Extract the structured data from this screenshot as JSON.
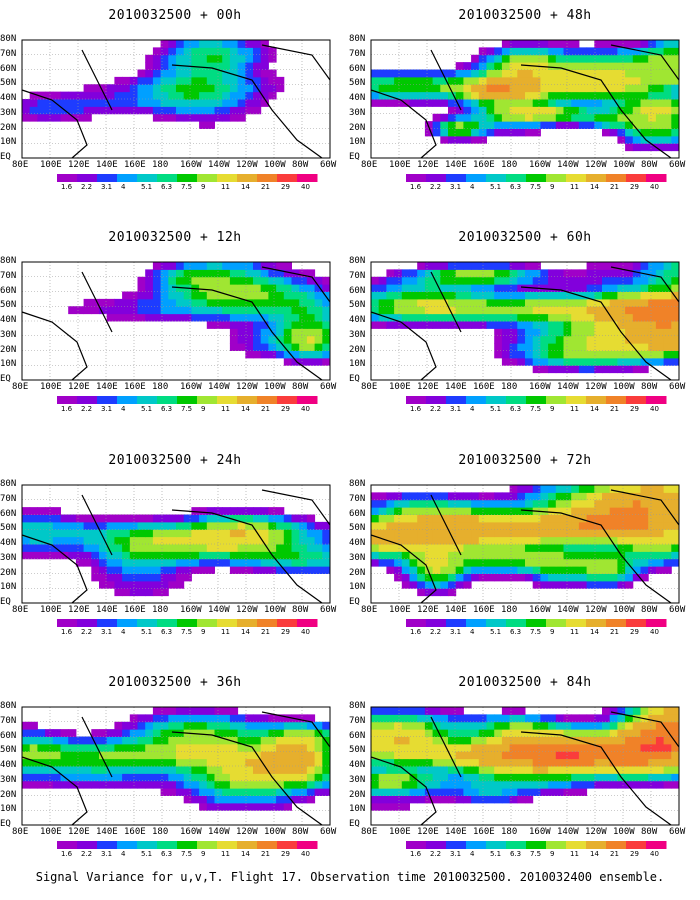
{
  "footer": "Signal Variance for u,v,T. Flight 17. Observation time 2010032500. 2010032400 ensemble.",
  "colors": {
    "levels": [
      "#a000c8",
      "#8200dc",
      "#1e3cff",
      "#00a0ff",
      "#00c8c8",
      "#00dc82",
      "#00c800",
      "#a0e632",
      "#e6dc32",
      "#e6af2d",
      "#f08228",
      "#fa3c3c",
      "#f00082"
    ]
  },
  "chart_data": {
    "type": "heatmap",
    "title": "",
    "xlabel": "",
    "ylabel": "",
    "x_ticks": [
      "80E",
      "100E",
      "120E",
      "140E",
      "160E",
      "180",
      "160W",
      "140W",
      "120W",
      "100W",
      "80W",
      "60W"
    ],
    "y_ticks": [
      "EQ",
      "10N",
      "20N",
      "30N",
      "40N",
      "50N",
      "60N",
      "70N",
      "80N"
    ],
    "colorbar_levels": [
      "1.6",
      "2.2",
      "3.1",
      "4",
      "5.1",
      "6.3",
      "7.5",
      "9",
      "11",
      "14",
      "21",
      "29",
      "40"
    ],
    "panels": [
      {
        "title": "2010032500 + 00h",
        "hour": 0
      },
      {
        "title": "2010032500 + 12h",
        "hour": 12
      },
      {
        "title": "2010032500 + 24h",
        "hour": 24
      },
      {
        "title": "2010032500 + 36h",
        "hour": 36
      },
      {
        "title": "2010032500 + 48h",
        "hour": 48
      },
      {
        "title": "2010032500 + 60h",
        "hour": 60
      },
      {
        "title": "2010032500 + 72h",
        "hour": 72
      },
      {
        "title": "2010032500 + 84h",
        "hour": 84
      }
    ]
  }
}
